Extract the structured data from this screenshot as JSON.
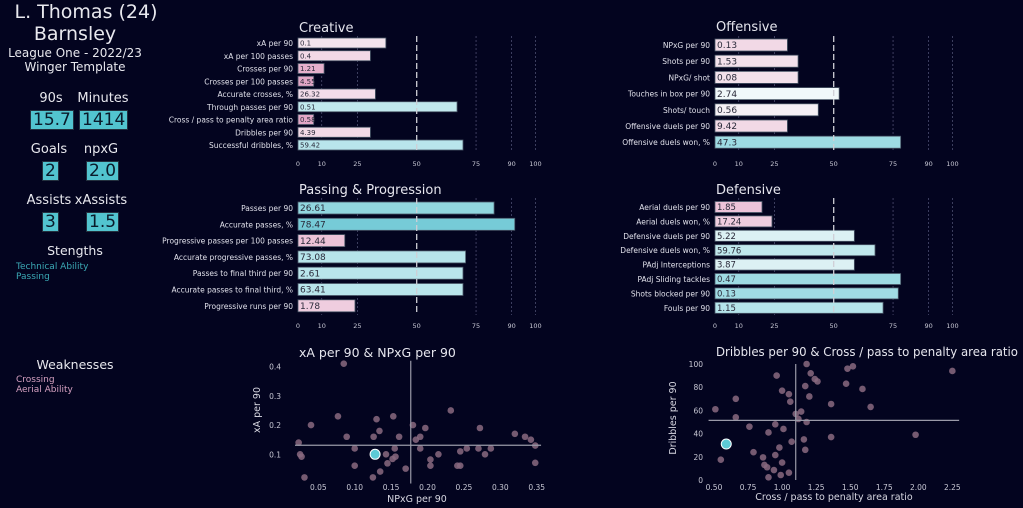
{
  "player": {
    "name": "L. Thomas (24)",
    "club": "Barnsley",
    "league": "League One - 2022/23",
    "template": "Winger Template"
  },
  "stats": [
    {
      "label": "90s",
      "value": "15.7"
    },
    {
      "label": "Minutes",
      "value": "1414"
    },
    {
      "label": "Goals",
      "value": "2"
    },
    {
      "label": "npxG",
      "value": "2.0"
    },
    {
      "label": "Assists",
      "value": "3"
    },
    {
      "label": "xAssists",
      "value": "1.5"
    }
  ],
  "strengths": {
    "title": "Stengths",
    "items": [
      "Technical Ability",
      "Passing"
    ]
  },
  "weaknesses": {
    "title": "Weaknesses",
    "items": [
      "Crossing",
      "Aerial Ability"
    ]
  },
  "colors": {
    "background": "#03041f",
    "stat_box": "#52c4cf",
    "strength_text": "#3ba9b5",
    "weakness_text": "#d4a0c0",
    "low_percentile": "#dc97bc",
    "mid_percentile": "#f7fbfc",
    "high_percentile": "#5cc0cf",
    "scatter_point": "#8a6a80",
    "scatter_highlight": "#5ccad6"
  },
  "chart_data": [
    {
      "type": "bar",
      "orientation": "horizontal",
      "title": "Creative",
      "xlim": [
        0,
        100
      ],
      "ticks": [
        0,
        10,
        25,
        50,
        75,
        90,
        100
      ],
      "reference_line": 50,
      "categories": [
        "xA per 90",
        "xA per 100 passes",
        "Crosses per 90",
        "Crosses per 100 passes",
        "Accurate crosses, %",
        "Through passes per 90",
        "Cross / pass to penalty area ratio",
        "Dribbles per 90",
        "Successful dribbles, %"
      ],
      "percentiles": [
        37,
        30.5,
        11,
        6.6,
        32.6,
        67,
        6.6,
        30.5,
        69.5
      ],
      "value_labels": [
        "0.1",
        "0.4",
        "1.21",
        "4.55",
        "26.32",
        "0.51",
        "0.58",
        "4.39",
        "59.42"
      ]
    },
    {
      "type": "bar",
      "orientation": "horizontal",
      "title": "Offensive",
      "xlim": [
        0,
        100
      ],
      "ticks": [
        0,
        10,
        25,
        50,
        75,
        90,
        100
      ],
      "reference_line": 50,
      "categories": [
        "NPxG per 90",
        "Shots per 90",
        "NPxG/ shot",
        "Touches in box per 90",
        "Shots/ touch",
        "Offensive duels per 90",
        "Offensive duels won, %"
      ],
      "percentiles": [
        30.5,
        35,
        35,
        52.3,
        43.5,
        30.5,
        78.2
      ],
      "value_labels": [
        "0.13",
        "1.53",
        "0.08",
        "2.74",
        "0.56",
        "9.42",
        "47.3"
      ]
    },
    {
      "type": "bar",
      "orientation": "horizontal",
      "title": "Passing & Progression",
      "xlim": [
        0,
        100
      ],
      "ticks": [
        0,
        10,
        25,
        50,
        75,
        90,
        100
      ],
      "reference_line": 50,
      "categories": [
        "Passes per 90",
        "Accurate passes, %",
        "Progressive passes per 100 passes",
        "Accurate progressive passes, %",
        "Passes to final third per 90",
        "Accurate passes to final third, %",
        "Progressive runs per 90"
      ],
      "percentiles": [
        82.6,
        91.3,
        19.7,
        70.6,
        69.5,
        69.5,
        24
      ],
      "value_labels": [
        "26.61",
        "78.47",
        "12.44",
        "73.08",
        "2.61",
        "63.41",
        "1.78"
      ]
    },
    {
      "type": "bar",
      "orientation": "horizontal",
      "title": "Defensive",
      "xlim": [
        0,
        100
      ],
      "ticks": [
        0,
        10,
        25,
        50,
        75,
        90,
        100
      ],
      "reference_line": 50,
      "categories": [
        "Aerial duels per 90",
        "Aerial duels won, %",
        "Defensive duels per 90",
        "Defensive duels won, %",
        "PAdj Interceptions",
        "PAdj Sliding tackles",
        "Shots blocked per 90",
        "Fouls per 90"
      ],
      "percentiles": [
        19.8,
        24,
        58.7,
        67.4,
        58.7,
        78.2,
        77.2,
        70.8
      ],
      "value_labels": [
        "1.85",
        "17.24",
        "5.22",
        "59.76",
        "3.87",
        "0.47",
        "0.13",
        "1.15"
      ]
    },
    {
      "type": "scatter",
      "title": "xA per 90 & NPxG per 90",
      "xlabel": "NPxG per 90",
      "ylabel": "xA per 90",
      "xlim": [
        0.018,
        0.356
      ],
      "ylim": [
        0.0,
        0.42
      ],
      "xticks": [
        "0.05",
        "0.10",
        "0.15",
        "0.20",
        "0.25",
        "0.30",
        "0.35"
      ],
      "yticks": [
        "0.1",
        "0.2",
        "0.3",
        "0.4"
      ],
      "reference_lines": {
        "x": 0.177,
        "y": 0.131
      },
      "highlight": {
        "x": 0.128,
        "y": 0.1
      },
      "points": [
        [
          0.085,
          0.41
        ],
        [
          0.023,
          0.14
        ],
        [
          0.025,
          0.1
        ],
        [
          0.027,
          0.092
        ],
        [
          0.031,
          0.021
        ],
        [
          0.04,
          0.2
        ],
        [
          0.077,
          0.23
        ],
        [
          0.089,
          0.16
        ],
        [
          0.1,
          0.12
        ],
        [
          0.1,
          0.061
        ],
        [
          0.125,
          0.021
        ],
        [
          0.126,
          0.16
        ],
        [
          0.13,
          0.22
        ],
        [
          0.134,
          0.18
        ],
        [
          0.135,
          0.041
        ],
        [
          0.143,
          0.1
        ],
        [
          0.145,
          0.069
        ],
        [
          0.152,
          0.084
        ],
        [
          0.156,
          0.092
        ],
        [
          0.153,
          0.23
        ],
        [
          0.155,
          0.12
        ],
        [
          0.161,
          0.16
        ],
        [
          0.17,
          0.051
        ],
        [
          0.18,
          0.2
        ],
        [
          0.184,
          0.15
        ],
        [
          0.19,
          0.16
        ],
        [
          0.19,
          0.12
        ],
        [
          0.197,
          0.19
        ],
        [
          0.204,
          0.082
        ],
        [
          0.204,
          0.061
        ],
        [
          0.215,
          0.1
        ],
        [
          0.232,
          0.25
        ],
        [
          0.241,
          0.061
        ],
        [
          0.245,
          0.061
        ],
        [
          0.245,
          0.11
        ],
        [
          0.254,
          0.12
        ],
        [
          0.27,
          0.12
        ],
        [
          0.272,
          0.19
        ],
        [
          0.279,
          0.1
        ],
        [
          0.287,
          0.12
        ],
        [
          0.32,
          0.17
        ],
        [
          0.334,
          0.16
        ],
        [
          0.342,
          0.15
        ],
        [
          0.348,
          0.13
        ],
        [
          0.348,
          0.071
        ]
      ]
    },
    {
      "type": "scatter",
      "title": "Dribbles per 90 & Cross / pass to penalty area ratio",
      "xlabel": "Cross / pass to penalty area ratio",
      "ylabel": "Dribbles per 90",
      "xlim": [
        0.46,
        2.3
      ],
      "ylim": [
        0,
        100
      ],
      "xticks": [
        "0.50",
        "0.75",
        "1.00",
        "1.25",
        "1.50",
        "1.75",
        "2.00",
        "2.25"
      ],
      "yticks": [
        "0",
        "20",
        "40",
        "60",
        "80",
        "100"
      ],
      "reference_lines": {
        "x": 1.1,
        "y": 51.4
      },
      "highlight": {
        "x": 0.59,
        "y": 31
      },
      "points": [
        [
          0.51,
          61
        ],
        [
          0.55,
          17.5
        ],
        [
          0.66,
          70
        ],
        [
          0.66,
          54
        ],
        [
          0.76,
          46
        ],
        [
          0.79,
          24
        ],
        [
          0.86,
          19.5
        ],
        [
          0.87,
          13
        ],
        [
          0.89,
          11
        ],
        [
          0.9,
          2.3
        ],
        [
          0.9,
          41
        ],
        [
          0.94,
          8.6
        ],
        [
          0.95,
          21.5
        ],
        [
          0.95,
          48
        ],
        [
          0.96,
          90
        ],
        [
          0.98,
          28
        ],
        [
          0.99,
          4.3
        ],
        [
          1.0,
          77
        ],
        [
          1.0,
          15
        ],
        [
          1.01,
          44
        ],
        [
          1.05,
          74
        ],
        [
          1.05,
          6.3
        ],
        [
          1.06,
          67.5
        ],
        [
          1.07,
          33
        ],
        [
          1.1,
          57
        ],
        [
          1.12,
          52.6
        ],
        [
          1.14,
          59
        ],
        [
          1.16,
          35
        ],
        [
          1.17,
          81
        ],
        [
          1.17,
          26
        ],
        [
          1.18,
          100
        ],
        [
          1.18,
          50
        ],
        [
          1.2,
          72
        ],
        [
          1.21,
          92
        ],
        [
          1.24,
          87
        ],
        [
          1.26,
          85
        ],
        [
          1.36,
          65.5
        ],
        [
          1.36,
          37
        ],
        [
          1.47,
          83
        ],
        [
          1.48,
          96
        ],
        [
          1.52,
          98
        ],
        [
          1.59,
          78.5
        ],
        [
          1.65,
          63
        ],
        [
          1.98,
          39
        ],
        [
          2.25,
          94
        ]
      ]
    }
  ]
}
